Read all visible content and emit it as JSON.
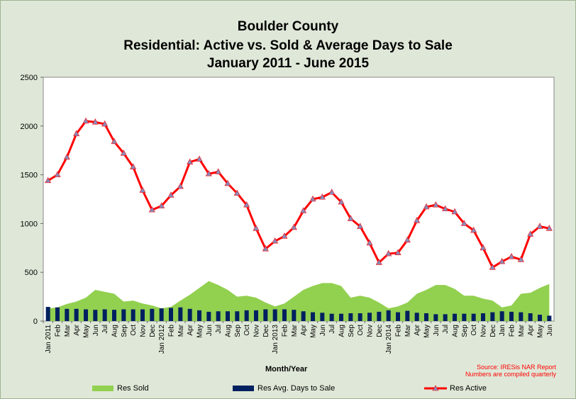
{
  "chart_data": {
    "type": "bar+area+line",
    "title": [
      "Boulder County",
      "Residential: Active vs. Sold & Average Days to Sale",
      "January 2011 - June 2015"
    ],
    "xlabel": "Month/Year",
    "ylabel": "",
    "ylim": [
      0,
      2500
    ],
    "yticks": [
      "0",
      "500",
      "1000",
      "1500",
      "2000",
      "2500"
    ],
    "grid": false,
    "legend_position": "bottom",
    "categories": [
      "Jan 2011",
      "Feb",
      "Mar",
      "Apr",
      "May",
      "Jun",
      "Jul",
      "Aug",
      "Sep",
      "Oct",
      "Nov",
      "Dec",
      "Jan 2012",
      "Feb",
      "Mar",
      "Apr",
      "May",
      "Jun",
      "Jul",
      "Aug",
      "Sep",
      "Oct",
      "Nov",
      "Dec",
      "Jan 2013",
      "Feb",
      "Mar",
      "Apr",
      "May",
      "Jun",
      "Jul",
      "Aug",
      "Sep",
      "Oct",
      "Nov",
      "Dec",
      "Jan 2014",
      "Feb",
      "Mar",
      "Apr",
      "May",
      "Jun",
      "Jul",
      "Aug",
      "Sep",
      "Oct",
      "Nov",
      "Dec",
      "Jan",
      "Feb",
      "Mar",
      "Apr",
      "May",
      "Jun"
    ],
    "series": [
      {
        "name": "Res Sold",
        "kind": "area",
        "color": "#92d050",
        "values": [
          130,
          140,
          175,
          200,
          240,
          320,
          300,
          280,
          200,
          210,
          180,
          160,
          130,
          145,
          210,
          270,
          340,
          410,
          370,
          320,
          250,
          260,
          240,
          190,
          150,
          180,
          250,
          320,
          360,
          390,
          390,
          360,
          240,
          260,
          240,
          190,
          130,
          150,
          190,
          280,
          320,
          370,
          370,
          330,
          260,
          260,
          230,
          210,
          140,
          160,
          280,
          290,
          340,
          380
        ]
      },
      {
        "name": "Res Avg. Days to Sale",
        "kind": "bar",
        "color": "#002060",
        "values": [
          145,
          140,
          125,
          125,
          120,
          115,
          120,
          115,
          120,
          120,
          120,
          125,
          130,
          135,
          140,
          125,
          110,
          95,
          100,
          100,
          100,
          110,
          110,
          120,
          120,
          120,
          115,
          100,
          90,
          85,
          75,
          75,
          80,
          80,
          85,
          95,
          110,
          90,
          105,
          85,
          80,
          70,
          70,
          75,
          75,
          75,
          80,
          90,
          100,
          95,
          90,
          80,
          65,
          55
        ]
      },
      {
        "name": "Res Active",
        "kind": "line",
        "color": "#ff0000",
        "values": [
          1440,
          1500,
          1680,
          1920,
          2050,
          2040,
          2020,
          1840,
          1720,
          1580,
          1340,
          1140,
          1180,
          1290,
          1380,
          1630,
          1660,
          1510,
          1530,
          1410,
          1310,
          1190,
          950,
          740,
          820,
          870,
          960,
          1130,
          1250,
          1270,
          1320,
          1220,
          1050,
          970,
          800,
          600,
          690,
          700,
          830,
          1030,
          1170,
          1190,
          1150,
          1120,
          1000,
          930,
          750,
          550,
          610,
          660,
          630,
          890,
          970,
          950
        ]
      }
    ]
  },
  "source": {
    "line1": "Source: IRESis NAR Report",
    "line2": "Numbers are compiled quarterly"
  }
}
